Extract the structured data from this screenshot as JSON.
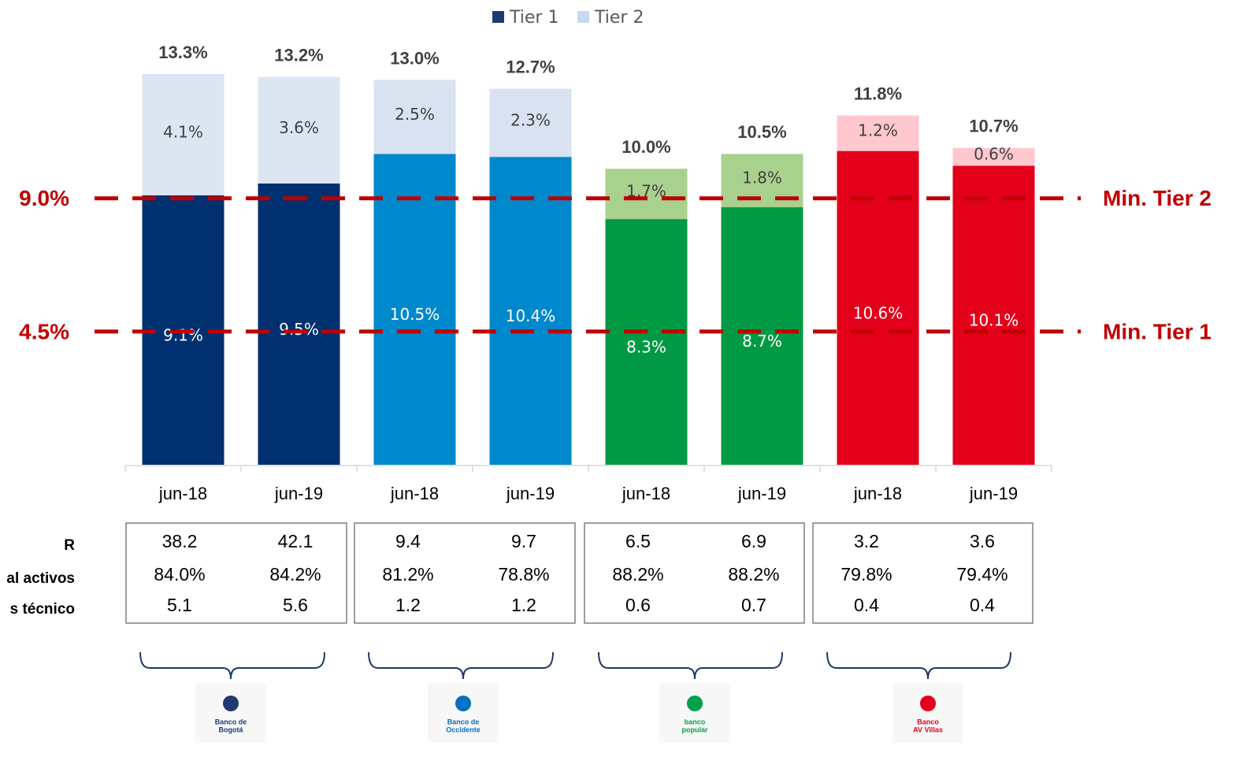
{
  "chart_data": {
    "type": "stacked_bar",
    "categories": [
      "jun-18",
      "jun-19",
      "jun-18",
      "jun-19",
      "jun-18",
      "jun-19",
      "jun-18",
      "jun-19"
    ],
    "series": [
      {
        "name": "Tier 1",
        "color": "#1f3a73",
        "bar_colors": [
          "#003070",
          "#003070",
          "#0088cc",
          "#0088cc",
          "#009a44",
          "#009a44",
          "#e2001a",
          "#e2001a"
        ],
        "values": [
          9.1,
          9.5,
          10.5,
          10.4,
          8.3,
          8.7,
          10.6,
          10.1
        ],
        "value_labels": [
          "9.1%",
          "9.5%",
          "10.5%",
          "10.4%",
          "8.3%",
          "8.7%",
          "10.6%",
          "10.1%"
        ]
      },
      {
        "name": "Tier 2",
        "color": "#c5d9f1",
        "bar_colors": [
          "#dce6f2",
          "#dce6f2",
          "#d9e2f0",
          "#d9e2f0",
          "#a9d18e",
          "#a9d18e",
          "#ffc7ce",
          "#ffc7ce"
        ],
        "values": [
          4.1,
          3.6,
          2.5,
          2.3,
          1.7,
          1.8,
          1.2,
          0.6
        ],
        "value_labels": [
          "4.1%",
          "3.6%",
          "2.5%",
          "2.3%",
          "1.7%",
          "1.8%",
          "1.2%",
          "0.6%"
        ]
      }
    ],
    "totals": {
      "values": [
        13.3,
        13.2,
        13.0,
        12.7,
        10.0,
        10.5,
        11.8,
        10.7
      ],
      "value_labels": [
        "13.3%",
        "13.2%",
        "13.0%",
        "12.7%",
        "10.0%",
        "10.5%",
        "11.8%",
        "10.7%"
      ]
    },
    "reference_lines": [
      {
        "value": 9.0,
        "label": "9.0%",
        "name": "Min. Tier 2",
        "color": "#c00000"
      },
      {
        "value": 4.5,
        "label": "4.5%",
        "name": "Min. Tier 1",
        "color": "#c00000"
      }
    ],
    "ylim": [
      0,
      15.7
    ],
    "legend": "top"
  },
  "table": {
    "row_labels": [
      "R",
      "al activos",
      "s técnico"
    ],
    "rows": [
      [
        "38.2",
        "42.1",
        "9.4",
        "9.7",
        "6.5",
        "6.9",
        "3.2",
        "3.6"
      ],
      [
        "84.0%",
        "84.2%",
        "81.2%",
        "78.8%",
        "88.2%",
        "88.2%",
        "79.8%",
        "79.4%"
      ],
      [
        "5.1",
        "5.6",
        "1.2",
        "1.2",
        "0.6",
        "0.7",
        "0.4",
        "0.4"
      ]
    ]
  },
  "logos": [
    {
      "lines": [
        "Banco de",
        "Bogotá"
      ],
      "color": "#1f3a73"
    },
    {
      "lines": [
        "Banco de",
        "Occidente"
      ],
      "color": "#0070c0"
    },
    {
      "lines": [
        "banco",
        "popular"
      ],
      "color": "#00a14b"
    },
    {
      "lines": [
        "Banco",
        "AV Villas"
      ],
      "color": "#e2001a"
    }
  ]
}
